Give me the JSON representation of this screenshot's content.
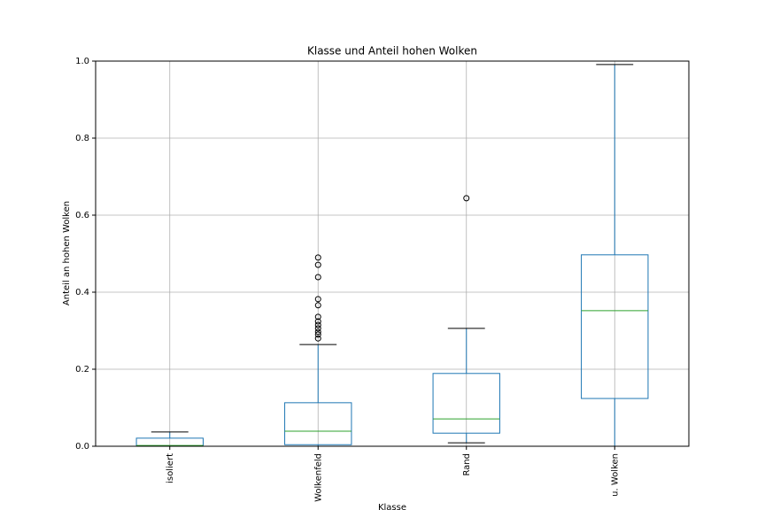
{
  "chart_data": {
    "type": "box",
    "title": "Klasse und Anteil hohen Wolken",
    "x_label": "Klasse",
    "y_label": "Anteil an hohen Wolken",
    "categories": [
      "isoliert",
      "Wolkenfeld",
      "Rand",
      "u. Wolken"
    ],
    "boxes": [
      {
        "min": 0,
        "q1": 0.001,
        "median": 0.002,
        "q3": 0.021,
        "max": 0.037,
        "outliers": []
      },
      {
        "min": 0,
        "q1": 0.004,
        "median": 0.039,
        "q3": 0.113,
        "max": 0.264,
        "outliers": [
          0.28,
          0.29,
          0.297,
          0.306,
          0.315,
          0.324,
          0.336,
          0.366,
          0.382,
          0.439,
          0.471,
          0.49
        ]
      },
      {
        "min": 0.009,
        "q1": 0.034,
        "median": 0.071,
        "q3": 0.189,
        "max": 0.306,
        "outliers": [
          0.644
        ]
      },
      {
        "min": 0,
        "q1": 0.124,
        "median": 0.352,
        "q3": 0.497,
        "max": 0.991,
        "outliers": []
      }
    ],
    "box_color": "#1f77b4",
    "median_color": "#2ca02c",
    "cap_color": "#000000",
    "ylim": [
      0,
      1
    ],
    "yticks": [
      {
        "value": 0,
        "label": "0.0"
      },
      0.2,
      0.4,
      0.6,
      0.8,
      {
        "value": 1,
        "label": "1.0"
      }
    ],
    "grid": true
  }
}
